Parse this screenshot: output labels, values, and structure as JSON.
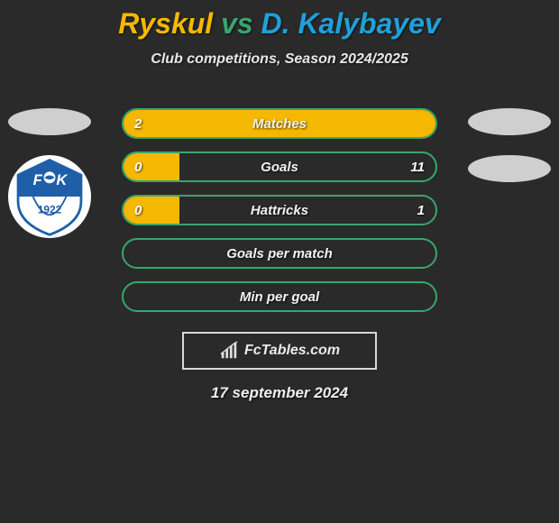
{
  "title": {
    "player1": "Ryskul",
    "vs": "vs",
    "player2": "D. Kalybayev"
  },
  "subtitle": "Club competitions, Season 2024/2025",
  "colors": {
    "player1": "#f5b800",
    "player2": "#1ea0da",
    "vs": "#37a66e",
    "border": "#37a66e",
    "background": "#2a2a2a",
    "ellipse": "#cfcfcf"
  },
  "side_left": {
    "has_ellipse": true,
    "crest": {
      "text": "FK",
      "year": "1922",
      "primary": "#1e5fa8",
      "secondary": "#ffffff"
    }
  },
  "side_right": {
    "ellipse_count": 2
  },
  "bars": [
    {
      "label": "Matches",
      "left_val": "2",
      "right_val": "",
      "left_pct": 100,
      "right_pct": 0
    },
    {
      "label": "Goals",
      "left_val": "0",
      "right_val": "11",
      "left_pct": 18,
      "right_pct": 0
    },
    {
      "label": "Hattricks",
      "left_val": "0",
      "right_val": "1",
      "left_pct": 18,
      "right_pct": 0
    },
    {
      "label": "Goals per match",
      "left_val": "",
      "right_val": "",
      "left_pct": 0,
      "right_pct": 0
    },
    {
      "label": "Min per goal",
      "left_val": "",
      "right_val": "",
      "left_pct": 0,
      "right_pct": 0
    }
  ],
  "bar_style": {
    "height": 34,
    "border_radius": 17,
    "border_color": "#37a66e",
    "label_fontsize": 15,
    "value_fontsize": 15
  },
  "watermark": {
    "text": "FcTables.com",
    "icon": "bar-chart-icon"
  },
  "date": "17 september 2024"
}
